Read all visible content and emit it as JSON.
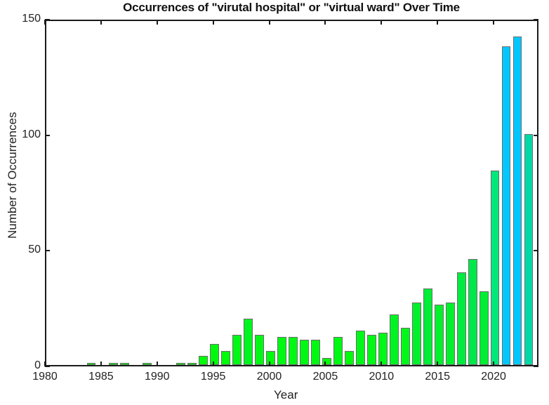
{
  "chart_data": {
    "type": "bar",
    "title": "Occurrences of \"virutal hospital\" or \"virtual ward\" Over Time",
    "xlabel": "Year",
    "ylabel": "Number of Occurrences",
    "xlim": [
      1980,
      2024
    ],
    "ylim": [
      0,
      150
    ],
    "xticks": [
      1980,
      1985,
      1990,
      1995,
      2000,
      2005,
      2010,
      2015,
      2020
    ],
    "yticks": [
      0,
      50,
      100,
      150
    ],
    "grid": false,
    "legend": null,
    "categories": [
      1984,
      1986,
      1987,
      1989,
      1992,
      1993,
      1994,
      1995,
      1996,
      1997,
      1998,
      1999,
      2000,
      2001,
      2002,
      2003,
      2004,
      2005,
      2006,
      2007,
      2008,
      2009,
      2010,
      2011,
      2012,
      2013,
      2014,
      2015,
      2016,
      2017,
      2018,
      2019,
      2020,
      2021,
      2022,
      2023
    ],
    "values": [
      1,
      1,
      1,
      1,
      1,
      1,
      4,
      9,
      6,
      13,
      20,
      13,
      6,
      12,
      12,
      11,
      11,
      3,
      12,
      6,
      15,
      13,
      14,
      22,
      16,
      27,
      33,
      26,
      27,
      40,
      46,
      32,
      84,
      138,
      142,
      100
    ],
    "colors": {
      "low": "#00ff00",
      "mid": "#00e87a",
      "teal": "#00d9a6",
      "high": "#00c8ff",
      "axis": "#1a1a1a",
      "bar_edge": "#6d6d6d"
    }
  }
}
